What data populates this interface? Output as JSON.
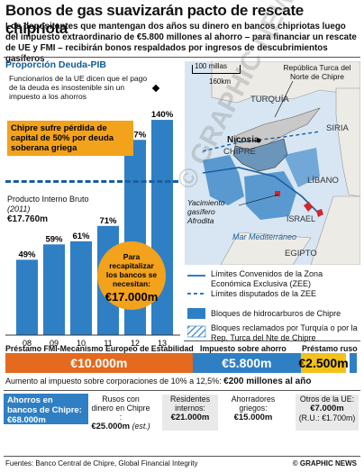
{
  "title": "Bonos de gas suavizarán pacto de rescate chipriota",
  "lede": "Los depositantes que mantengan dos años su dinero en bancos chipriotas luego del impuesto extraordinario de €5.800 millones al ahorro – para financiar un rescate de UE y FMI – recibirán bonos respaldados por ingresos de descubrimientos gasíferos",
  "chart_data": {
    "type": "bar",
    "title": "Proporción Deuda-PIB",
    "categories": [
      "08",
      "09",
      "10",
      "11",
      "12",
      "13"
    ],
    "values": [
      49,
      59,
      61,
      71,
      127,
      140
    ],
    "value_labels": [
      "49%",
      "59%",
      "61%",
      "71%",
      "127%",
      "140%"
    ],
    "ylim": [
      0,
      150
    ],
    "reference_line": 100
  },
  "chart_notes": {
    "officials": "Funcionarios de la UE dicen que el pago de la deuda es insostenible sin un impuesto a los ahorros",
    "loss_box": "Chipre sufre pérdida de capital de 50% por deuda soberana griega",
    "gdp_label": "Producto Interno Bruto",
    "gdp_year": "(2011)",
    "gdp_value": "€17.760m",
    "circle_text": "Para recapitalizar los bancos se necesitan:",
    "circle_value": "€17.000m"
  },
  "map": {
    "scale_top": "100 millas",
    "scale_bottom": "160km",
    "trnc": "República Turca del Norte de Chipre",
    "turquia": "TURQUÍA",
    "siria": "SIRIA",
    "nicosia": "Nicosia",
    "chipre": "CHIPRE",
    "libano": "LÍBANO",
    "aphrodite": "Yacimiento gasífero Afrodita",
    "israel": "ISRAEL",
    "mar": "Mar Mediterráneo",
    "egipto": "EGIPTO",
    "colors": {
      "sea": "#d7e6f2",
      "land": "#ecebe6",
      "cyprus": "#6c96b9",
      "trnc": "#c9c9c9",
      "blocks": "#2f7fc4"
    }
  },
  "legend": [
    {
      "label": "Límites Convenidos de la Zona Económica Exclusiva (ZEE)",
      "swatch": "solid-line"
    },
    {
      "label": "Límites disputados de la ZEE",
      "swatch": "dashed-line"
    },
    {
      "label": "Bloques de hidrocarburos de Chipre",
      "swatch": "fill"
    },
    {
      "label": "Bloques reclamados por Turquía o por la Rep. Turca del Nte de Chipre",
      "swatch": "hatch"
    }
  ],
  "funding": {
    "label_imf": "Préstamo FMI-Mecanismo Europeo de Estabilidad",
    "label_tax": "Impuesto sobre ahorro",
    "label_russia": "Préstamo ruso",
    "imf_value": "€10.000m",
    "tax_value": "€5.800m",
    "russia_value": "€2.500m",
    "imf_amount": 10000,
    "tax_amount": 5800,
    "russia_amount": 2500,
    "colors": {
      "imf": "#e36a1f",
      "tax": "#2f7fc4",
      "russia": "#f2c21b"
    }
  },
  "tax_increase": {
    "text": "Aumento al impuesto sobre corporaciones de 10% a 12,5%:",
    "value": "€200 millones al año"
  },
  "deposits": {
    "title": "Ahorros en bancos de Chipre:",
    "total": "€68.000m",
    "cells": [
      {
        "label": "Rusos con dinero en Chipre :",
        "value": "€25.000m",
        "note": "(est.)"
      },
      {
        "label": "Residentes internos:",
        "value": "€21.000m",
        "note": ""
      },
      {
        "label": "Ahorradores griegos:",
        "value": "€15.000m",
        "note": ""
      },
      {
        "label": "Otros de la UE:",
        "value": "€7.000m",
        "note": "(R.U.: €1.700m)"
      }
    ]
  },
  "footer": {
    "sources": "Fuentes: Banco Central de Chipre, Global Financial Integrity",
    "credit": "© GRAPHIC NEWS"
  },
  "watermark": "© GRAPHIC NEWS"
}
